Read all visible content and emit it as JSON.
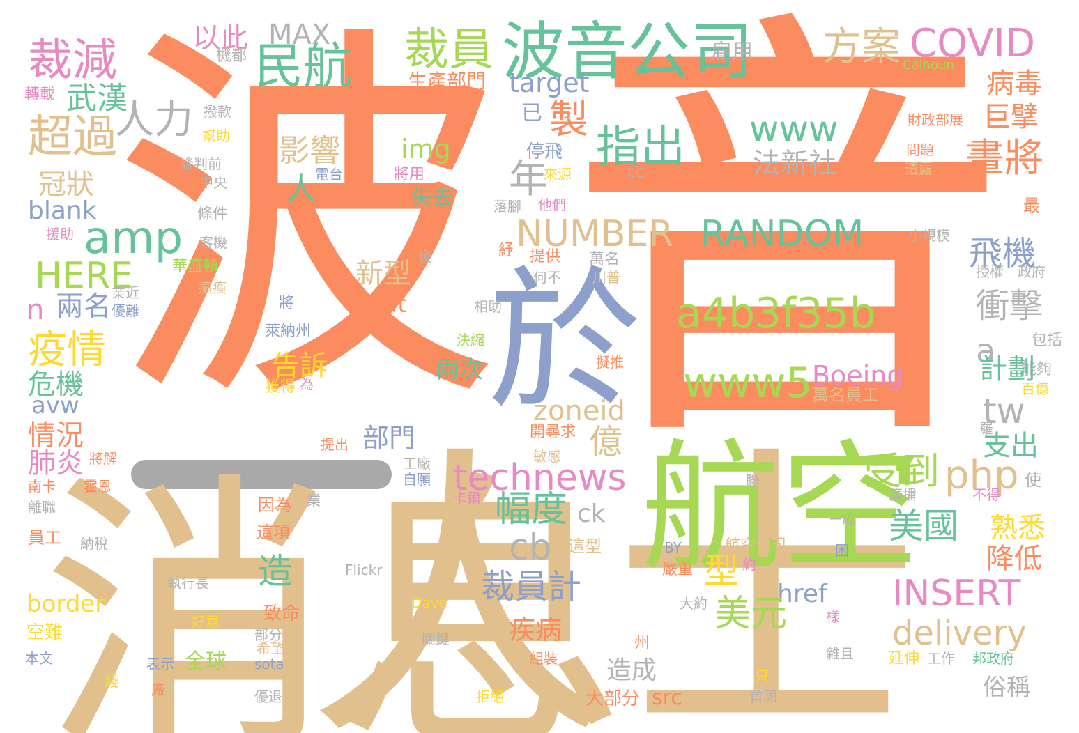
{
  "palette": {
    "orange": "#fb8c5f",
    "tan": "#e2c08e",
    "green": "#66c29a",
    "blue": "#8da0cb",
    "pink": "#e78ac3",
    "lime": "#a6d854",
    "yellow": "#ffd92f",
    "gray": "#b3b3b3"
  },
  "words": [
    {
      "text": "波",
      "color": "#fb8c5f"
    },
    {
      "text": "音",
      "color": "#fb8c5f"
    },
    {
      "text": "消息",
      "color": "#e2c08e"
    },
    {
      "text": "人士",
      "color": "#e2c08e"
    },
    {
      "text": "於",
      "color": "#8da0cb"
    },
    {
      "text": "航空",
      "color": "#a6d854"
    },
    {
      "text": "波音公司",
      "color": "#66c29a"
    },
    {
      "text": "裁員",
      "color": "#a6d854"
    },
    {
      "text": "民航",
      "color": "#66c29a"
    },
    {
      "text": "裁減",
      "color": "#e78ac3"
    },
    {
      "text": "以此",
      "color": "#e78ac3"
    },
    {
      "text": "MAX",
      "color": "#b3b3b3"
    },
    {
      "text": "方案",
      "color": "#e2c08e"
    },
    {
      "text": "COVID",
      "color": "#e78ac3"
    },
    {
      "text": "雇用",
      "color": "#b3b3b3"
    },
    {
      "text": "機都",
      "color": "#b3b3b3"
    },
    {
      "text": "Calhoun",
      "color": "#a6d854"
    },
    {
      "text": "武漢",
      "color": "#66c29a"
    },
    {
      "text": "轉載",
      "color": "#e78ac3"
    },
    {
      "text": "target",
      "color": "#8da0cb"
    },
    {
      "text": "生產部門",
      "color": "#fb8c5f"
    },
    {
      "text": "病毒",
      "color": "#fb8c5f"
    },
    {
      "text": "人力",
      "color": "#b3b3b3"
    },
    {
      "text": "超過",
      "color": "#e2c08e"
    },
    {
      "text": "撥款",
      "color": "#b3b3b3"
    },
    {
      "text": "幫助",
      "color": "#ffd92f"
    },
    {
      "text": "製",
      "color": "#fb8c5f"
    },
    {
      "text": "已",
      "color": "#8da0cb"
    },
    {
      "text": "www",
      "color": "#66c29a"
    },
    {
      "text": "巨擘",
      "color": "#fb8c5f"
    },
    {
      "text": "財政部展",
      "color": "#fb8c5f"
    },
    {
      "text": "指出",
      "color": "#66c29a"
    },
    {
      "text": "img",
      "color": "#a6d854"
    },
    {
      "text": "影響",
      "color": "#e2c08e"
    },
    {
      "text": "停飛",
      "color": "#8da0cb"
    },
    {
      "text": "問題",
      "color": "#fb8c5f"
    },
    {
      "text": "談判前",
      "color": "#b3b3b3"
    },
    {
      "text": "電台",
      "color": "#8da0cb"
    },
    {
      "text": "冠狀",
      "color": "#e2c08e"
    },
    {
      "text": "將用",
      "color": "#e78ac3"
    },
    {
      "text": "來源",
      "color": "#ffd92f"
    },
    {
      "text": "CC",
      "color": "#b3b3b3"
    },
    {
      "text": "法新社",
      "color": "#b3b3b3"
    },
    {
      "text": "畫將",
      "color": "#fb8c5f"
    },
    {
      "text": "透露",
      "color": "#e2c08e"
    },
    {
      "text": "中央",
      "color": "#b3b3b3"
    },
    {
      "text": "人",
      "color": "#66c29a"
    },
    {
      "text": "年",
      "color": "#b3b3b3"
    },
    {
      "text": "失去",
      "color": "#66c29a"
    },
    {
      "text": "blank",
      "color": "#8da0cb"
    },
    {
      "text": "條件",
      "color": "#b3b3b3"
    },
    {
      "text": "落腳",
      "color": "#b3b3b3"
    },
    {
      "text": "他們",
      "color": "#e78ac3"
    },
    {
      "text": "最",
      "color": "#fb8c5f"
    },
    {
      "text": "amp",
      "color": "#66c29a"
    },
    {
      "text": "NUMBER",
      "color": "#e2c08e"
    },
    {
      "text": "RANDOM",
      "color": "#66c29a"
    },
    {
      "text": "援助",
      "color": "#e78ac3"
    },
    {
      "text": "客機",
      "color": "#b3b3b3"
    },
    {
      "text": "飛機",
      "color": "#8da0cb"
    },
    {
      "text": "小規模",
      "color": "#b3b3b3"
    },
    {
      "text": "紓",
      "color": "#fb8c5f"
    },
    {
      "text": "提供",
      "color": "#fb8c5f"
    },
    {
      "text": "萬名",
      "color": "#b3b3b3"
    },
    {
      "text": "HERE",
      "color": "#a6d854"
    },
    {
      "text": "華盛頓",
      "color": "#a6d854"
    },
    {
      "text": "復",
      "color": "#b3b3b3"
    },
    {
      "text": "新型",
      "color": "#e2c08e"
    },
    {
      "text": "授權",
      "color": "#b3b3b3"
    },
    {
      "text": "政府",
      "color": "#b3b3b3"
    },
    {
      "text": "川普",
      "color": "#e2c08e"
    },
    {
      "text": "何不",
      "color": "#b3b3b3"
    },
    {
      "text": "癱瘓",
      "color": "#e2c08e"
    },
    {
      "text": "業近",
      "color": "#b3b3b3"
    },
    {
      "text": "n",
      "color": "#e78ac3"
    },
    {
      "text": "兩名",
      "color": "#8da0cb"
    },
    {
      "text": "將",
      "color": "#8da0cb"
    },
    {
      "text": "優離",
      "color": "#8da0cb"
    },
    {
      "text": "alt",
      "color": "#fb8c5f"
    },
    {
      "text": "相助",
      "color": "#b3b3b3"
    },
    {
      "text": "a4b3f35b",
      "color": "#a6d854"
    },
    {
      "text": "衝擊",
      "color": "#b3b3b3"
    },
    {
      "text": "疫情",
      "color": "#ffd92f"
    },
    {
      "text": "萊納州",
      "color": "#8da0cb"
    },
    {
      "text": "決縮",
      "color": "#a6d854"
    },
    {
      "text": "a",
      "color": "#b3b3b3"
    },
    {
      "text": "包括",
      "color": "#b3b3b3"
    },
    {
      "text": "告訴",
      "color": "#ffd92f"
    },
    {
      "text": "擬推",
      "color": "#fb8c5f"
    },
    {
      "text": "能夠",
      "color": "#b3b3b3"
    },
    {
      "text": "危機",
      "color": "#66c29a"
    },
    {
      "text": "兩次",
      "color": "#66c29a"
    },
    {
      "text": "www5",
      "color": "#a6d854"
    },
    {
      "text": "Boeing",
      "color": "#e78ac3"
    },
    {
      "text": "計劃",
      "color": "#66c29a"
    },
    {
      "text": "百億",
      "color": "#ffd92f"
    },
    {
      "text": "avw",
      "color": "#8da0cb"
    },
    {
      "text": "獲得",
      "color": "#ffd92f"
    },
    {
      "text": "為",
      "color": "#e78ac3"
    },
    {
      "text": "萬名員工",
      "color": "#e2c08e"
    },
    {
      "text": "zoneid",
      "color": "#e2c08e"
    },
    {
      "text": "tw",
      "color": "#b3b3b3"
    },
    {
      "text": "情況",
      "color": "#fb8c5f"
    },
    {
      "text": "部門",
      "color": "#8da0cb"
    },
    {
      "text": "億",
      "color": "#e2c08e"
    },
    {
      "text": "開尋求",
      "color": "#fb8c5f"
    },
    {
      "text": "羅",
      "color": "#b3b3b3"
    },
    {
      "text": "支出",
      "color": "#66c29a"
    },
    {
      "text": "肺炎",
      "color": "#e78ac3"
    },
    {
      "text": "將解",
      "color": "#fb8c5f"
    },
    {
      "text": "提出",
      "color": "#fb8c5f"
    },
    {
      "text": "工廠",
      "color": "#b3b3b3"
    },
    {
      "text": "敏感",
      "color": "#e2c08e"
    },
    {
      "text": "technews",
      "color": "#e78ac3"
    },
    {
      "text": "受到",
      "color": "#a6d854"
    },
    {
      "text": "php",
      "color": "#e2c08e"
    },
    {
      "text": "南卡",
      "color": "#fb8c5f"
    },
    {
      "text": "霍恩",
      "color": "#fb8c5f"
    },
    {
      "text": "自願",
      "color": "#8da0cb"
    },
    {
      "text": "卡爾",
      "color": "#e78ac3"
    },
    {
      "text": "聯",
      "color": "#b3b3b3"
    },
    {
      "text": "使",
      "color": "#b3b3b3"
    },
    {
      "text": "離職",
      "color": "#b3b3b3"
    },
    {
      "text": "業",
      "color": "#b3b3b3"
    },
    {
      "text": "幅度",
      "color": "#66c29a"
    },
    {
      "text": "ck",
      "color": "#b3b3b3"
    },
    {
      "text": "廣播",
      "color": "#b3b3b3"
    },
    {
      "text": "不得",
      "color": "#e78ac3"
    },
    {
      "text": "因為",
      "color": "#fb8c5f"
    },
    {
      "text": "熟悉",
      "color": "#ffd92f"
    },
    {
      "text": "員工",
      "color": "#fb8c5f"
    },
    {
      "text": "這項",
      "color": "#fb8c5f"
    },
    {
      "text": "美國",
      "color": "#66c29a"
    },
    {
      "text": "一成",
      "color": "#b3b3b3"
    },
    {
      "text": "納稅",
      "color": "#b3b3b3"
    },
    {
      "text": "cb",
      "color": "#b3b3b3"
    },
    {
      "text": "這型",
      "color": "#e2c08e"
    },
    {
      "text": "BY",
      "color": "#8da0cb"
    },
    {
      "text": "航空公司",
      "color": "#e2c08e"
    },
    {
      "text": "困",
      "color": "#8da0cb"
    },
    {
      "text": "造",
      "color": "#66c29a"
    },
    {
      "text": "型",
      "color": "#ffd92f"
    },
    {
      "text": "降低",
      "color": "#fb8c5f"
    },
    {
      "text": "Flickr",
      "color": "#b3b3b3"
    },
    {
      "text": "嚴重",
      "color": "#fb8c5f"
    },
    {
      "text": "約",
      "color": "#e78ac3"
    },
    {
      "text": "執行長",
      "color": "#b3b3b3"
    },
    {
      "text": "裁員計",
      "color": "#8da0cb"
    },
    {
      "text": "href",
      "color": "#8da0cb"
    },
    {
      "text": "INSERT",
      "color": "#e78ac3"
    },
    {
      "text": "border",
      "color": "#ffd92f"
    },
    {
      "text": "Dave",
      "color": "#ffd92f"
    },
    {
      "text": "大約",
      "color": "#b3b3b3"
    },
    {
      "text": "致命",
      "color": "#fb8c5f"
    },
    {
      "text": "美元",
      "color": "#a6d854"
    },
    {
      "text": "樣",
      "color": "#e78ac3"
    },
    {
      "text": "好意",
      "color": "#ffd92f"
    },
    {
      "text": "空難",
      "color": "#ffd92f"
    },
    {
      "text": "部分",
      "color": "#b3b3b3"
    },
    {
      "text": "疾病",
      "color": "#fb8c5f"
    },
    {
      "text": "delivery",
      "color": "#e2c08e"
    },
    {
      "text": "關鍵",
      "color": "#b3b3b3"
    },
    {
      "text": "希望",
      "color": "#e2c08e"
    },
    {
      "text": "州",
      "color": "#fb8c5f"
    },
    {
      "text": "組裝",
      "color": "#fb8c5f"
    },
    {
      "text": "雜且",
      "color": "#b3b3b3"
    },
    {
      "text": "本文",
      "color": "#8da0cb"
    },
    {
      "text": "表示",
      "color": "#8da0cb"
    },
    {
      "text": "全球",
      "color": "#a6d854"
    },
    {
      "text": "sota",
      "color": "#8da0cb"
    },
    {
      "text": "造成",
      "color": "#b3b3b3"
    },
    {
      "text": "延伸",
      "color": "#ffd92f"
    },
    {
      "text": "工作",
      "color": "#b3b3b3"
    },
    {
      "text": "邦政府",
      "color": "#66c29a"
    },
    {
      "text": "錢",
      "color": "#ffd92f"
    },
    {
      "text": "廠",
      "color": "#fb8c5f"
    },
    {
      "text": "優退",
      "color": "#b3b3b3"
    },
    {
      "text": "拒絕",
      "color": "#ffd92f"
    },
    {
      "text": "大部分",
      "color": "#fb8c5f"
    },
    {
      "text": "src",
      "color": "#fb8c5f"
    },
    {
      "text": "只",
      "color": "#ffd92f"
    },
    {
      "text": "首國",
      "color": "#b3b3b3"
    },
    {
      "text": "俗稱",
      "color": "#b3b3b3"
    }
  ]
}
